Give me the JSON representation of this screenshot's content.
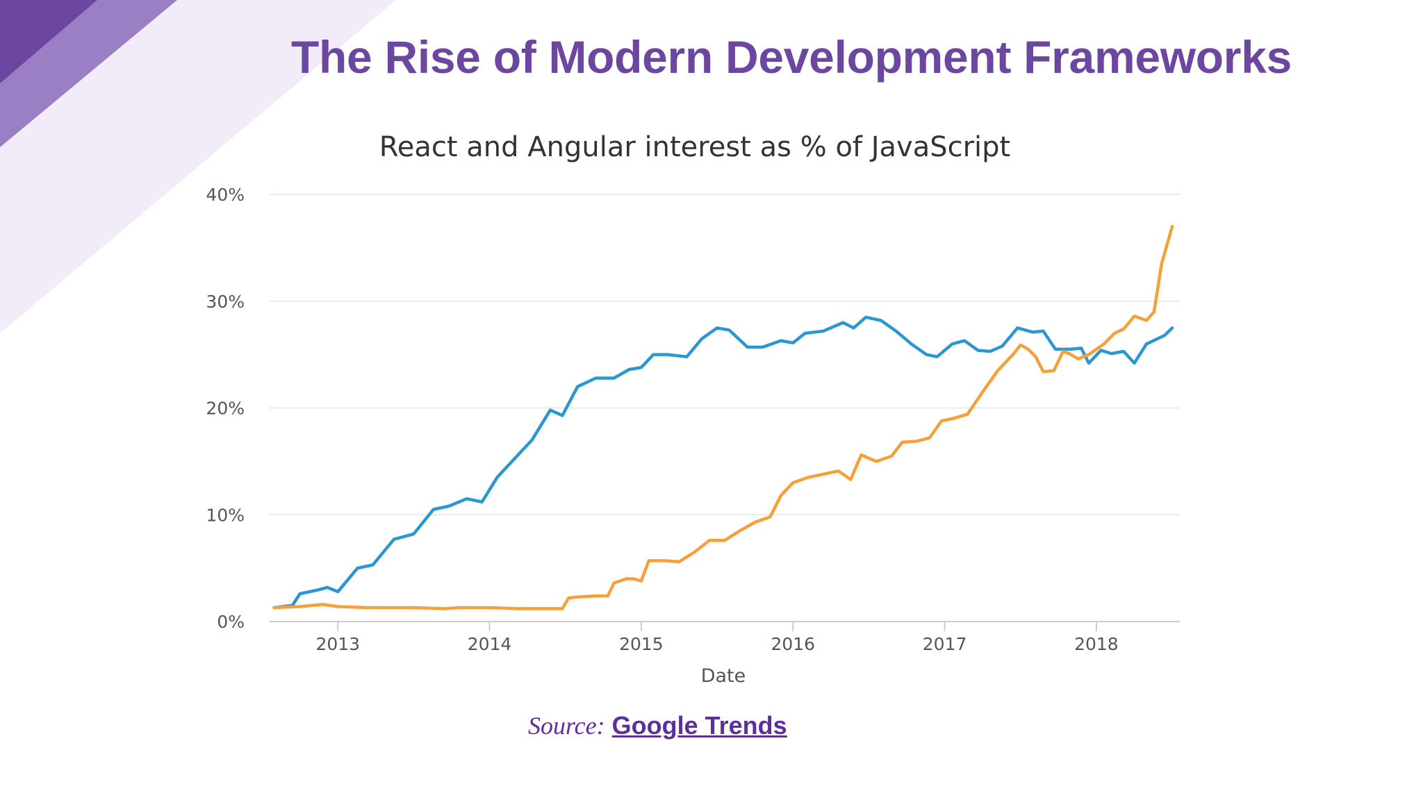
{
  "slide": {
    "title": "The Rise of Modern Development Frameworks",
    "title_color": "#6b47a0",
    "accent_dark": "#6b47a0",
    "accent_mid": "#9b7fc4",
    "accent_light": "#f1ecf8"
  },
  "source": {
    "label": "Source:",
    "link_text": "Google Trends",
    "color": "#5c2e9e"
  },
  "chart_data": {
    "type": "line",
    "title": "React and Angular interest as % of JavaScript",
    "xlabel": "Date",
    "ylabel": "",
    "xlim": [
      2012.55,
      2018.55
    ],
    "ylim": [
      0,
      40
    ],
    "x_ticks": [
      2013,
      2014,
      2015,
      2016,
      2017,
      2018
    ],
    "x_tick_labels": [
      "2013",
      "2014",
      "2015",
      "2016",
      "2017",
      "2018"
    ],
    "y_ticks": [
      0,
      10,
      20,
      30,
      40
    ],
    "y_tick_labels": [
      "0%",
      "10%",
      "20%",
      "30%",
      "40%"
    ],
    "grid": true,
    "legend": false,
    "series": [
      {
        "color": "#2b96cf",
        "x": [
          2012.58,
          2012.7,
          2012.75,
          2012.88,
          2012.93,
          2013.0,
          2013.13,
          2013.23,
          2013.37,
          2013.5,
          2013.63,
          2013.73,
          2013.85,
          2013.95,
          2014.05,
          2014.2,
          2014.28,
          2014.4,
          2014.48,
          2014.58,
          2014.7,
          2014.82,
          2014.92,
          2015.0,
          2015.08,
          2015.17,
          2015.3,
          2015.4,
          2015.5,
          2015.58,
          2015.7,
          2015.8,
          2015.92,
          2016.0,
          2016.08,
          2016.2,
          2016.33,
          2016.4,
          2016.48,
          2016.58,
          2016.68,
          2016.78,
          2016.88,
          2016.95,
          2017.05,
          2017.13,
          2017.22,
          2017.3,
          2017.38,
          2017.48,
          2017.58,
          2017.65,
          2017.73,
          2017.83,
          2017.9,
          2017.95,
          2018.03,
          2018.1,
          2018.18,
          2018.25,
          2018.33,
          2018.45,
          2018.5
        ],
        "y": [
          1.3,
          1.5,
          2.6,
          3.0,
          3.2,
          2.8,
          5.0,
          5.3,
          7.7,
          8.2,
          10.5,
          10.8,
          11.5,
          11.2,
          13.5,
          15.8,
          17.0,
          19.8,
          19.3,
          22.0,
          22.8,
          22.8,
          23.6,
          23.8,
          25.0,
          25.0,
          24.8,
          26.5,
          27.5,
          27.3,
          25.7,
          25.7,
          26.3,
          26.1,
          27.0,
          27.2,
          28.0,
          27.5,
          28.5,
          28.2,
          27.2,
          26.0,
          25.0,
          24.8,
          26.0,
          26.3,
          25.4,
          25.3,
          25.8,
          27.5,
          27.1,
          27.2,
          25.5,
          25.5,
          25.6,
          24.2,
          25.4,
          25.1,
          25.3,
          24.2,
          26.0,
          26.8,
          27.5
        ]
      },
      {
        "color": "#f5a03b",
        "x": [
          2012.58,
          2012.75,
          2012.9,
          2013.0,
          2013.2,
          2013.5,
          2013.7,
          2013.8,
          2014.0,
          2014.2,
          2014.4,
          2014.48,
          2014.52,
          2014.58,
          2014.7,
          2014.78,
          2014.82,
          2014.9,
          2014.95,
          2015.0,
          2015.05,
          2015.15,
          2015.25,
          2015.35,
          2015.45,
          2015.55,
          2015.65,
          2015.75,
          2015.85,
          2015.92,
          2016.0,
          2016.1,
          2016.2,
          2016.3,
          2016.38,
          2016.45,
          2016.55,
          2016.65,
          2016.72,
          2016.82,
          2016.9,
          2016.98,
          2017.05,
          2017.15,
          2017.25,
          2017.35,
          2017.45,
          2017.5,
          2017.55,
          2017.6,
          2017.65,
          2017.72,
          2017.78,
          2017.82,
          2017.88,
          2017.95,
          2018.05,
          2018.12,
          2018.18,
          2018.25,
          2018.33,
          2018.38,
          2018.43,
          2018.5
        ],
        "y": [
          1.3,
          1.4,
          1.6,
          1.4,
          1.3,
          1.3,
          1.2,
          1.3,
          1.3,
          1.2,
          1.2,
          1.2,
          2.2,
          2.3,
          2.4,
          2.4,
          3.6,
          4.0,
          4.0,
          3.8,
          5.7,
          5.7,
          5.6,
          6.5,
          7.6,
          7.6,
          8.5,
          9.3,
          9.8,
          11.8,
          13.0,
          13.5,
          13.8,
          14.1,
          13.3,
          15.6,
          15.0,
          15.5,
          16.8,
          16.9,
          17.2,
          18.8,
          19.0,
          19.4,
          21.5,
          23.5,
          25.0,
          25.9,
          25.5,
          24.8,
          23.4,
          23.5,
          25.3,
          25.1,
          24.6,
          25.0,
          26.0,
          27.0,
          27.4,
          28.6,
          28.2,
          29.0,
          33.5,
          37.0
        ]
      }
    ]
  }
}
